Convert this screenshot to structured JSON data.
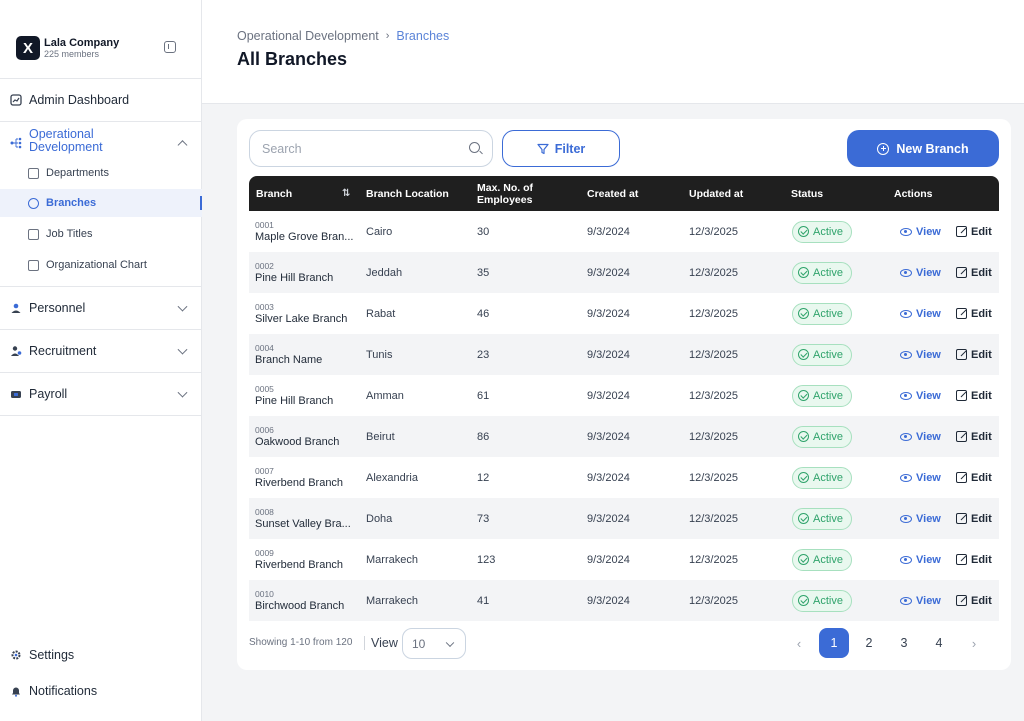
{
  "company": {
    "logo": "X",
    "name": "Lala Company",
    "members": "225 members"
  },
  "sidebar": {
    "admin_dashboard": "Admin Dashboard",
    "operational_development": "Operational Development",
    "sub_items": [
      "Departments",
      "Branches",
      "Job Titles",
      "Organizational Chart"
    ],
    "personnel": "Personnel",
    "recruitment": "Recruitment",
    "payroll": "Payroll",
    "settings": "Settings",
    "notifications": "Notifications"
  },
  "breadcrumb": {
    "parent": "Operational Development",
    "separator": "›",
    "current": "Branches"
  },
  "page_title": "All Branches",
  "toolbar": {
    "search_placeholder": "Search",
    "filter_label": "Filter",
    "new_branch_label": "New Branch"
  },
  "table": {
    "headers": {
      "branch": "Branch",
      "location": "Branch Location",
      "max_employees": "Max. No. of Employees",
      "created_at": "Created at",
      "updated_at": "Updated at",
      "status": "Status",
      "actions": "Actions"
    },
    "view_label": "View",
    "edit_label": "Edit",
    "rows": [
      {
        "id": "0001",
        "name": "Maple Grove Bran...",
        "location": "Cairo",
        "max": "30",
        "created": "9/3/2024",
        "updated": "12/3/2025",
        "status": "Active"
      },
      {
        "id": "0002",
        "name": "Pine Hill Branch",
        "location": "Jeddah",
        "max": "35",
        "created": "9/3/2024",
        "updated": "12/3/2025",
        "status": "Active"
      },
      {
        "id": "0003",
        "name": "Silver Lake Branch",
        "location": "Rabat",
        "max": "46",
        "created": "9/3/2024",
        "updated": "12/3/2025",
        "status": "Active"
      },
      {
        "id": "0004",
        "name": "Branch Name",
        "location": "Tunis",
        "max": "23",
        "created": "9/3/2024",
        "updated": "12/3/2025",
        "status": "Active"
      },
      {
        "id": "0005",
        "name": "Pine Hill Branch",
        "location": "Amman",
        "max": "61",
        "created": "9/3/2024",
        "updated": "12/3/2025",
        "status": "Active"
      },
      {
        "id": "0006",
        "name": "Oakwood Branch",
        "location": "Beirut",
        "max": "86",
        "created": "9/3/2024",
        "updated": "12/3/2025",
        "status": "Active"
      },
      {
        "id": "0007",
        "name": "Riverbend Branch",
        "location": "Alexandria",
        "max": "12",
        "created": "9/3/2024",
        "updated": "12/3/2025",
        "status": "Active"
      },
      {
        "id": "0008",
        "name": "Sunset Valley Bra...",
        "location": "Doha",
        "max": "73",
        "created": "9/3/2024",
        "updated": "12/3/2025",
        "status": "Active"
      },
      {
        "id": "0009",
        "name": "Riverbend Branch",
        "location": "Marrakech",
        "max": "123",
        "created": "9/3/2024",
        "updated": "12/3/2025",
        "status": "Active"
      },
      {
        "id": "0010",
        "name": "Birchwood Branch",
        "location": "Marrakech",
        "max": "41",
        "created": "9/3/2024",
        "updated": "12/3/2025",
        "status": "Active"
      }
    ]
  },
  "footer": {
    "showing": "Showing 1-10 from 120",
    "view_label": "View",
    "page_size": "10",
    "prev": "‹",
    "next": "›",
    "pages": [
      "1",
      "2",
      "3",
      "4"
    ],
    "current_page": "1"
  },
  "colors": {
    "accent": "#3b6bd6",
    "header_dark": "#1f1f1f",
    "active_green": "#2fa36b"
  }
}
